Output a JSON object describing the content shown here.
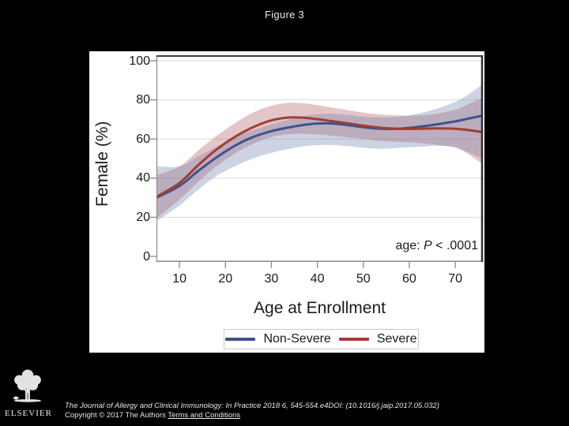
{
  "title": "Figure 3",
  "colors": {
    "background": "#000000",
    "panel": "#ffffff",
    "grid": "#d9d9d9",
    "axis": "#8a8a8a",
    "box_top": "#3d3d3d",
    "box_right": "#2f2f2f",
    "footer_text": "#e6e6ee"
  },
  "chart_data": {
    "type": "line",
    "title": "",
    "xlabel": "Age at Enrollment",
    "ylabel": "Female (%)",
    "xlim": [
      5,
      76
    ],
    "ylim": [
      0,
      100
    ],
    "x_ticks": [
      10,
      20,
      30,
      40,
      50,
      60,
      70
    ],
    "y_ticks": [
      0,
      20,
      40,
      60,
      80,
      100
    ],
    "grid": "horizontal",
    "legend_position": "bottom",
    "annotation": {
      "prefix": "age: ",
      "italic": "P",
      "suffix": " < .0001"
    },
    "x": [
      5,
      10,
      14,
      18,
      22,
      26,
      30,
      34,
      38,
      42,
      46,
      50,
      54,
      58,
      62,
      66,
      70,
      73,
      76
    ],
    "series": [
      {
        "name": "Non-Severe",
        "color": "#3f518c",
        "band_color": "rgba(112,129,172,0.35)",
        "values": [
          30,
          36,
          43.5,
          50.5,
          56.5,
          61,
          64,
          66,
          67.5,
          68,
          67.3,
          66,
          65.2,
          65.3,
          66.2,
          67.5,
          69,
          70.5,
          72
        ],
        "band_lower": [
          18,
          26,
          34,
          41,
          46,
          50,
          53,
          55,
          56.5,
          57,
          56.5,
          55.5,
          55,
          55.5,
          56,
          56.5,
          56,
          53,
          50
        ],
        "band_upper": [
          46,
          46,
          51,
          56,
          61,
          64.5,
          67.5,
          70,
          72,
          73,
          72.5,
          71.5,
          71,
          71.5,
          73,
          75.5,
          79,
          83,
          88
        ]
      },
      {
        "name": "Severe",
        "color": "#a23d33",
        "band_color": "rgba(178,89,98,0.35)",
        "values": [
          30.5,
          37.5,
          46.5,
          54.5,
          61,
          66,
          69.5,
          71,
          70.7,
          69.5,
          68.2,
          66.8,
          65.7,
          65.2,
          65.2,
          65.4,
          65.2,
          64.5,
          63.5
        ],
        "band_lower": [
          19.5,
          29,
          38,
          46,
          52.5,
          57.5,
          61,
          62.5,
          62.5,
          62,
          61,
          60,
          59,
          58.5,
          58,
          57,
          55.5,
          52,
          47
        ],
        "band_upper": [
          41.5,
          46,
          54,
          61.5,
          68,
          73.5,
          77,
          78.5,
          78,
          76.5,
          75,
          73.5,
          72.5,
          72,
          72,
          73,
          75,
          78,
          81
        ]
      }
    ]
  },
  "footer": {
    "citation_line1": "The Journal of Allergy and Clinical Immunology: In Practice 2018 6, 545-554.e4DOI: (10.1016/j.jaip.2017.05.032)",
    "copyright_prefix": "Copyright © 2017 The Authors ",
    "terms_link": "Terms and Conditions",
    "logo_text": "ELSEVIER"
  }
}
